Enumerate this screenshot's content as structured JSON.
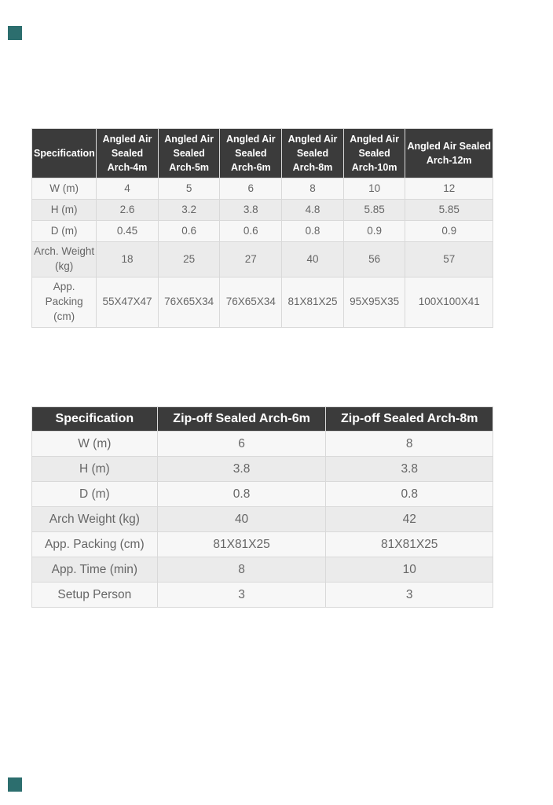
{
  "page": {
    "background": "#ffffff",
    "marker_color": "#2c6e6e"
  },
  "colors": {
    "table_header_bg": "#3b3b3b",
    "table_header_text": "#ffffff",
    "row_light": "#f7f7f7",
    "row_dark": "#ebebeb",
    "cell_border": "#d9d9d9",
    "body_text": "#666666"
  },
  "table1": {
    "name": "angled-air-sealed-arch-specs",
    "header": [
      "Specification",
      "Angled Air Sealed Arch-4m",
      "Angled Air Sealed Arch-5m",
      "Angled Air Sealed Arch-6m",
      "Angled Air Sealed Arch-8m",
      "Angled Air Sealed Arch-10m",
      "Angled Air Sealed Arch-12m"
    ],
    "rows": [
      {
        "label": "W (m)",
        "values": [
          "4",
          "5",
          "6",
          "8",
          "10",
          "12"
        ]
      },
      {
        "label": "H (m)",
        "values": [
          "2.6",
          "3.2",
          "3.8",
          "4.8",
          "5.85",
          "5.85"
        ]
      },
      {
        "label": "D (m)",
        "values": [
          "0.45",
          "0.6",
          "0.6",
          "0.8",
          "0.9",
          "0.9"
        ]
      },
      {
        "label": "Arch. Weight (kg)",
        "values": [
          "18",
          "25",
          "27",
          "40",
          "56",
          "57"
        ]
      },
      {
        "label": "App. Packing (cm)",
        "values": [
          "55X47X47",
          "76X65X34",
          "76X65X34",
          "81X81X25",
          "95X95X35",
          "100X100X41"
        ]
      }
    ],
    "row_height_classes": [
      "h27",
      "h27",
      "h27",
      "h44",
      "h61"
    ],
    "col_widths": [
      "14%",
      "13.4%",
      "13.4%",
      "13.4%",
      "13.4%",
      "13.4%",
      "19%"
    ]
  },
  "table2": {
    "name": "zip-off-sealed-arch-specs",
    "header": [
      "Specification",
      "Zip-off Sealed Arch-6m",
      "Zip-off Sealed Arch-8m"
    ],
    "rows": [
      {
        "label": "W (m)",
        "values": [
          "6",
          "8"
        ]
      },
      {
        "label": "H (m)",
        "values": [
          "3.8",
          "3.8"
        ]
      },
      {
        "label": "D (m)",
        "values": [
          "0.8",
          "0.8"
        ]
      },
      {
        "label": "Arch Weight (kg)",
        "values": [
          "40",
          "42"
        ]
      },
      {
        "label": "App. Packing (cm)",
        "values": [
          "81X81X25",
          "81X81X25"
        ]
      },
      {
        "label": "App. Time (min)",
        "values": [
          "8",
          "10"
        ]
      },
      {
        "label": "Setup Person",
        "values": [
          "3",
          "3"
        ]
      }
    ],
    "row_height_classes": [
      "",
      "",
      "",
      "",
      "",
      "",
      ""
    ],
    "col_widths": [
      "27.2%",
      "36.6%",
      "36.2%"
    ]
  }
}
